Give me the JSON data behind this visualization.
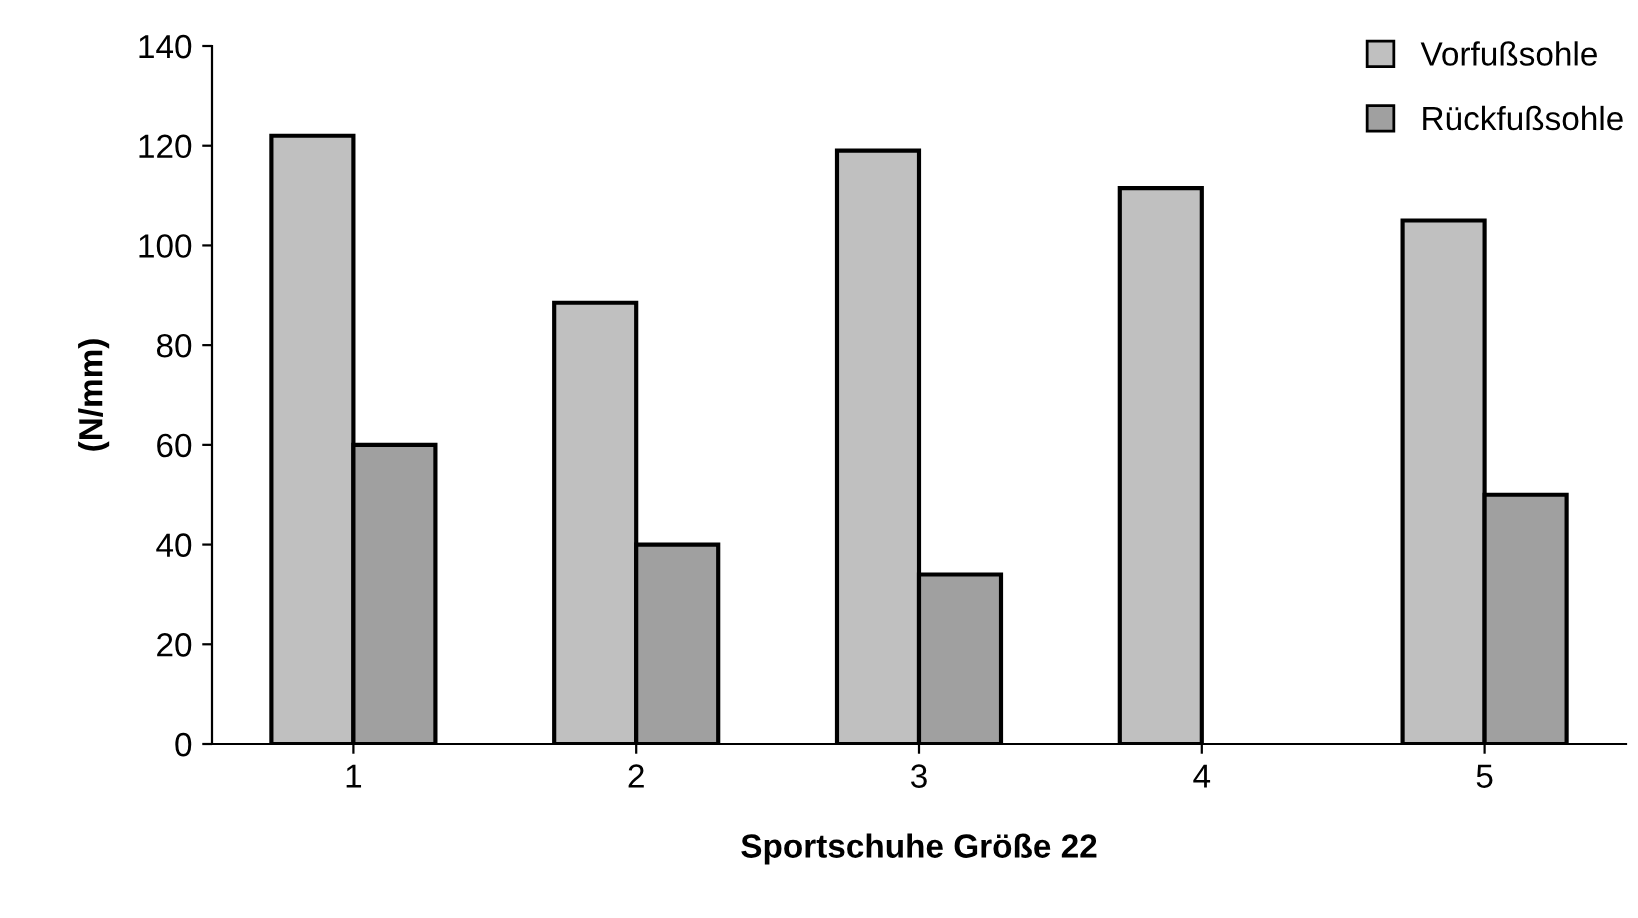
{
  "chart_data": {
    "type": "bar",
    "xlabel": "Sportschuhe Größe 22",
    "ylabel": "(N/mm)",
    "categories": [
      "1",
      "2",
      "3",
      "4",
      "5"
    ],
    "series": [
      {
        "name": "Vorfußsohle",
        "color": "#c0c0c0",
        "values": [
          122,
          88.5,
          119,
          111.5,
          105
        ]
      },
      {
        "name": "Rückfußsohle",
        "color": "#a0a0a0",
        "values": [
          60,
          40,
          34,
          null,
          50
        ]
      }
    ],
    "ylim": [
      0,
      140
    ],
    "yticks": [
      0,
      20,
      40,
      60,
      80,
      100,
      120,
      140
    ],
    "grid": false,
    "legend": "top right"
  }
}
